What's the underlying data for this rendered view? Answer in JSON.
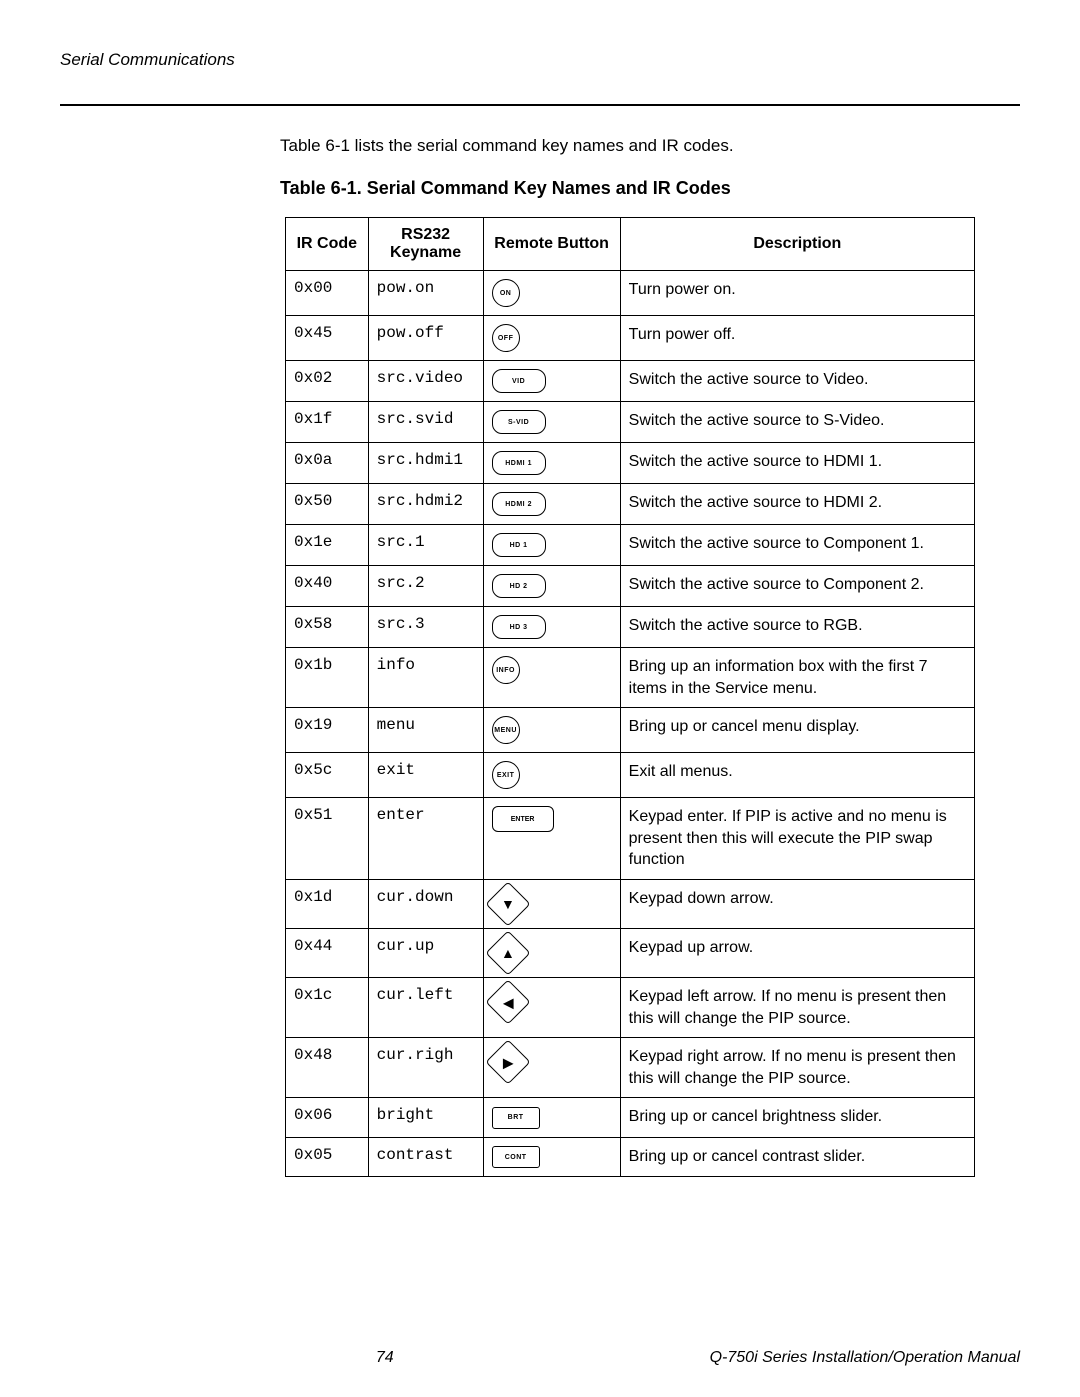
{
  "header": {
    "section_title": "Serial Communications"
  },
  "intro_text": "Table 6-1 lists the serial command key names and IR codes.",
  "table_caption": "Table 6-1. Serial Command Key Names and IR Codes",
  "columns": {
    "ir": "IR Code",
    "key": "RS232 Keyname",
    "btn": "Remote Button",
    "desc": "Description"
  },
  "rows": [
    {
      "ir": "0x00",
      "key": "pow.on",
      "btn_label": "ON",
      "btn_shape": "circle",
      "desc": "Turn power on."
    },
    {
      "ir": "0x45",
      "key": "pow.off",
      "btn_label": "OFF",
      "btn_shape": "circle",
      "desc": "Turn power off."
    },
    {
      "ir": "0x02",
      "key": "src.video",
      "btn_label": "VID",
      "btn_shape": "pill",
      "desc": "Switch the active source to Video."
    },
    {
      "ir": "0x1f",
      "key": "src.svid",
      "btn_label": "S-VID",
      "btn_shape": "pill",
      "desc": "Switch the active source to S-Video."
    },
    {
      "ir": "0x0a",
      "key": "src.hdmi1",
      "btn_label": "HDMI 1",
      "btn_shape": "pill",
      "desc": "Switch the active source to HDMI 1."
    },
    {
      "ir": "0x50",
      "key": "src.hdmi2",
      "btn_label": "HDMI 2",
      "btn_shape": "pill",
      "desc": "Switch the active source to HDMI 2."
    },
    {
      "ir": "0x1e",
      "key": "src.1",
      "btn_label": "HD 1",
      "btn_shape": "pill",
      "desc": "Switch the active source to Component 1."
    },
    {
      "ir": "0x40",
      "key": "src.2",
      "btn_label": "HD 2",
      "btn_shape": "pill",
      "desc": "Switch the active source to Component 2."
    },
    {
      "ir": "0x58",
      "key": "src.3",
      "btn_label": "HD 3",
      "btn_shape": "pill",
      "desc": "Switch the active source to RGB."
    },
    {
      "ir": "0x1b",
      "key": "info",
      "btn_label": "INFO",
      "btn_shape": "circle",
      "desc": "Bring up an information box with the first 7 items in the Service menu."
    },
    {
      "ir": "0x19",
      "key": "menu",
      "btn_label": "MENU",
      "btn_shape": "circle",
      "desc": "Bring up or cancel menu display."
    },
    {
      "ir": "0x5c",
      "key": "exit",
      "btn_label": "EXIT",
      "btn_shape": "circle",
      "desc": "Exit all menus."
    },
    {
      "ir": "0x51",
      "key": "enter",
      "btn_label": "ENTER",
      "btn_shape": "enter",
      "desc": "Keypad enter.  If PIP is active and no menu is present then this will execute the PIP  swap function"
    },
    {
      "ir": "0x1d",
      "key": "cur.down",
      "btn_label": "▼",
      "btn_shape": "diamond",
      "desc": "Keypad down arrow."
    },
    {
      "ir": "0x44",
      "key": "cur.up",
      "btn_label": "▲",
      "btn_shape": "diamond",
      "desc": "Keypad up arrow."
    },
    {
      "ir": "0x1c",
      "key": "cur.left",
      "btn_label": "◀",
      "btn_shape": "diamond",
      "desc": "Keypad left arrow.  If no menu is present then this will change the PIP source."
    },
    {
      "ir": "0x48",
      "key": "cur.righ",
      "btn_label": "▶",
      "btn_shape": "diamond",
      "desc": "Keypad right arrow.  If no menu is present then this will change the PIP source."
    },
    {
      "ir": "0x06",
      "key": "bright",
      "btn_label": "BRT",
      "btn_shape": "rect",
      "desc": "Bring up or cancel brightness slider."
    },
    {
      "ir": "0x05",
      "key": "contrast",
      "btn_label": "CONT",
      "btn_shape": "rect",
      "desc": "Bring up or cancel contrast slider."
    }
  ],
  "footer": {
    "page_number": "74",
    "manual_title": "Q-750i Series Installation/Operation Manual"
  }
}
